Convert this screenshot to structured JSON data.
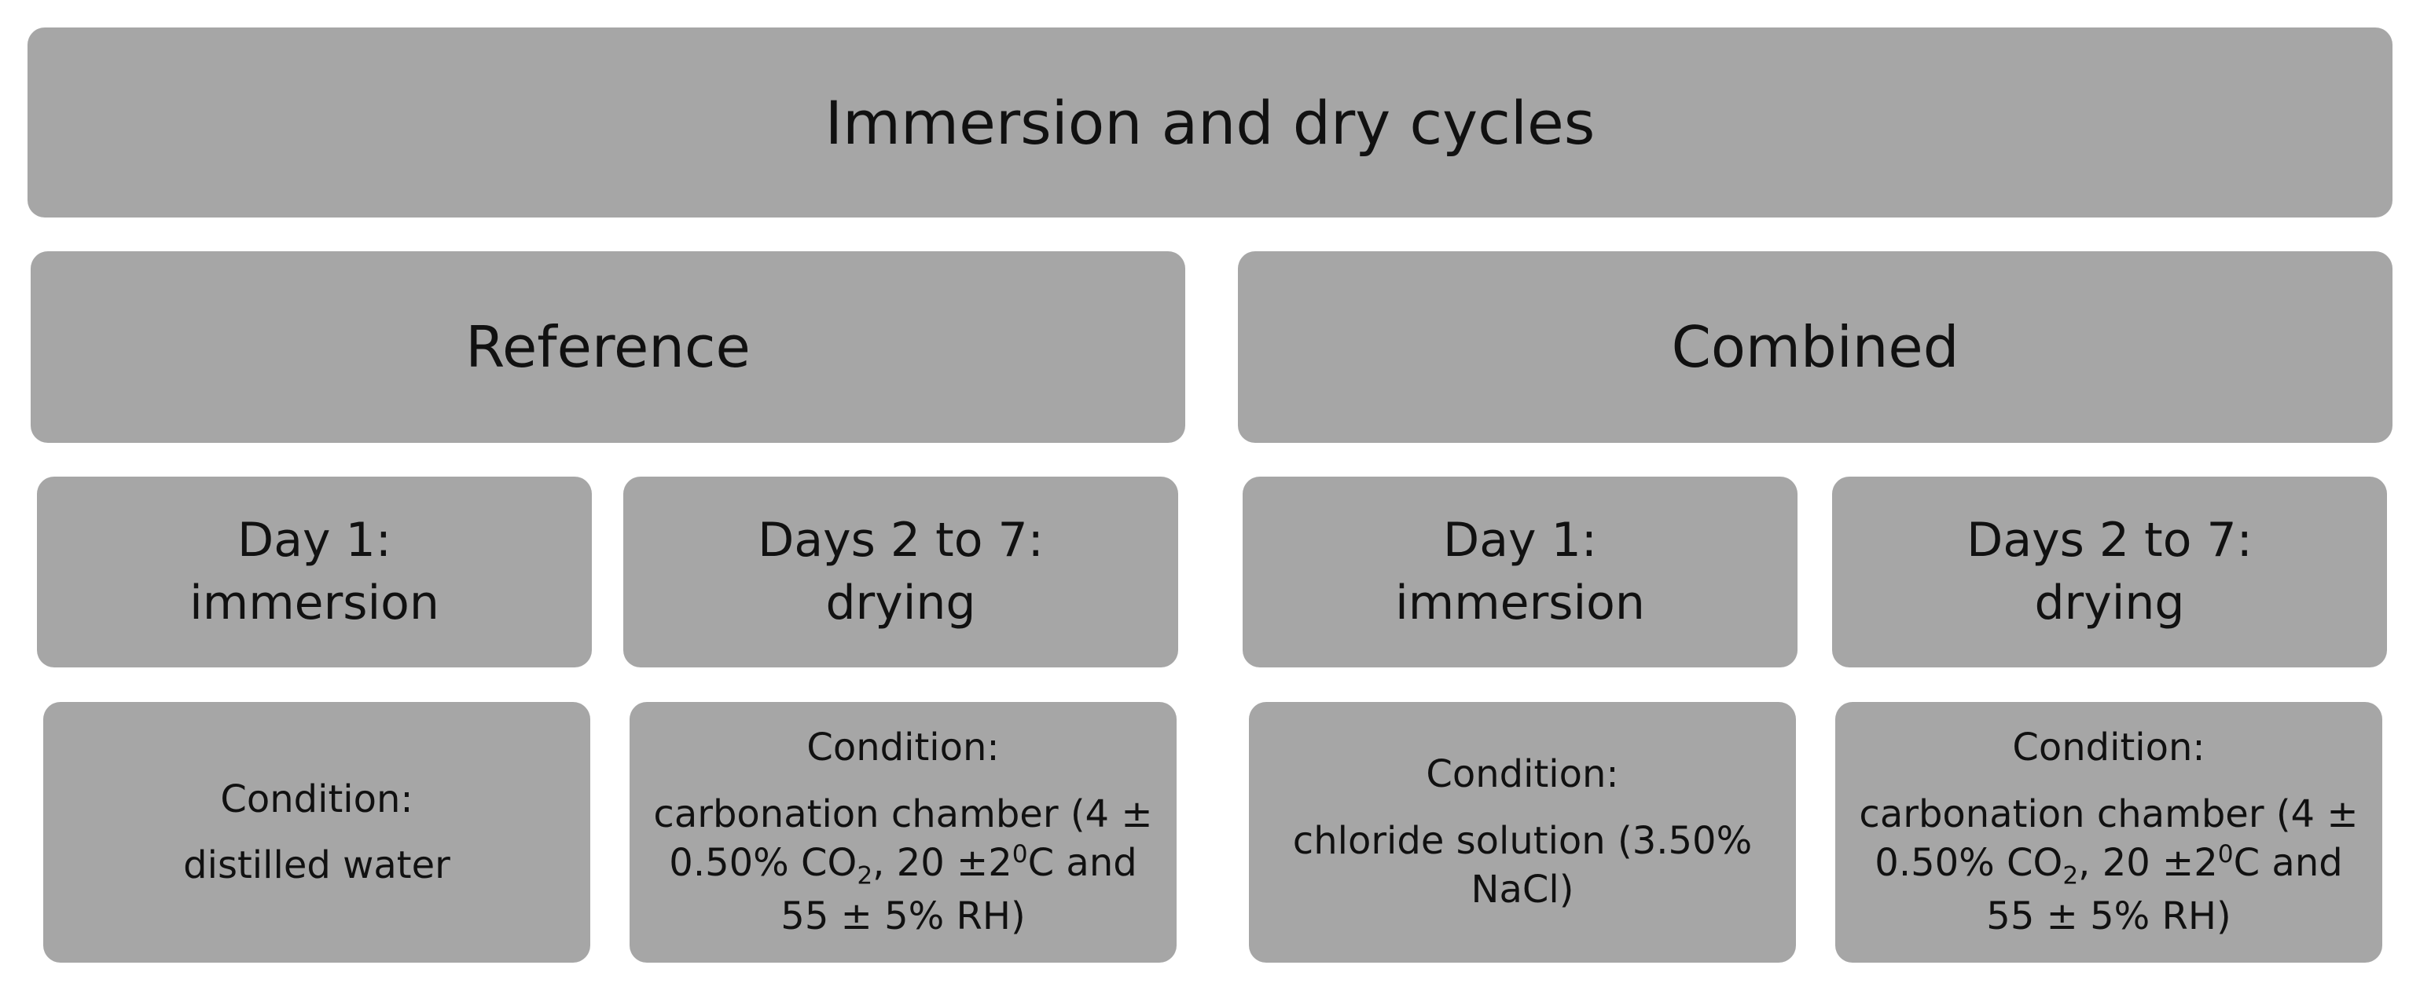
{
  "title": "Immersion and dry cycles",
  "groups": [
    {
      "label": "Reference",
      "steps": [
        {
          "title_lines": [
            "Day 1:",
            "immersion"
          ],
          "condition_label": "Condition:",
          "condition": [
            {
              "text": "distilled water"
            }
          ]
        },
        {
          "title_lines": [
            "Days 2 to 7:",
            "drying"
          ],
          "condition_label": "Condition:",
          "condition": [
            {
              "text": "carbonation chamber (4 ± 0.50% CO"
            },
            {
              "sub": "2"
            },
            {
              "text": ", 20 ±2"
            },
            {
              "sup": "0"
            },
            {
              "text": "C and 55 ± 5% RH)"
            }
          ]
        }
      ]
    },
    {
      "label": "Combined",
      "steps": [
        {
          "title_lines": [
            "Day 1:",
            "immersion"
          ],
          "condition_label": "Condition:",
          "condition": [
            {
              "text": "chloride solution (3.50% NaCl)"
            }
          ]
        },
        {
          "title_lines": [
            "Days 2 to 7:",
            "drying"
          ],
          "condition_label": "Condition:",
          "condition": [
            {
              "text": "carbonation chamber (4 ± 0.50% CO"
            },
            {
              "sub": "2"
            },
            {
              "text": ", 20 ±2"
            },
            {
              "sup": "0"
            },
            {
              "text": "C and 55 ± 5% RH)"
            }
          ]
        }
      ]
    }
  ]
}
